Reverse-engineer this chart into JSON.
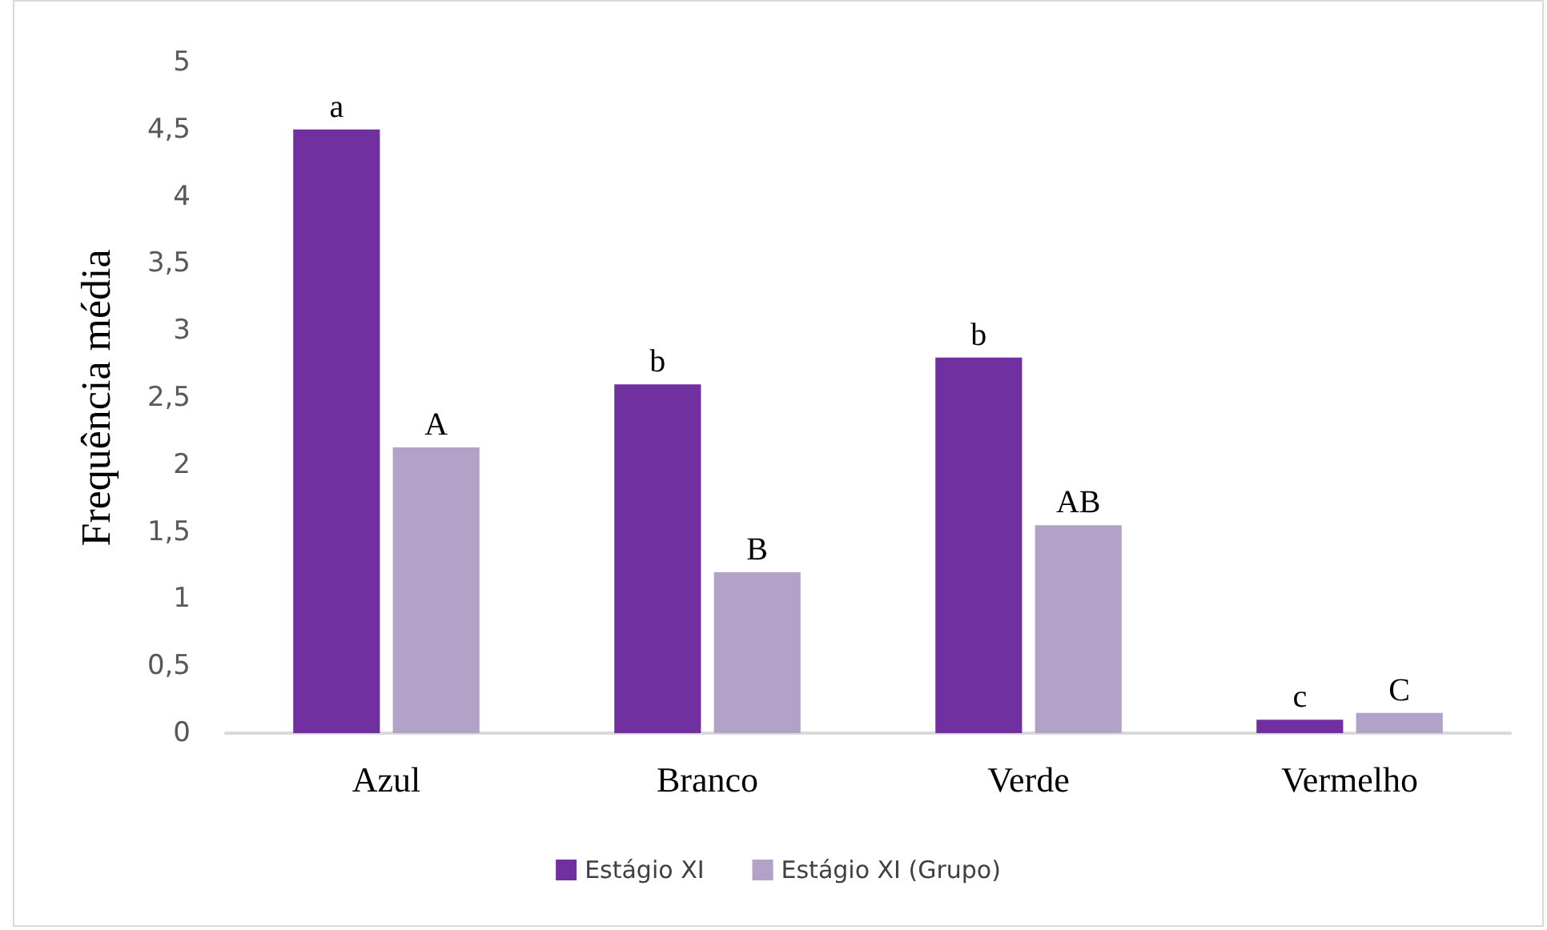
{
  "chart_data": {
    "type": "bar",
    "ylabel": "Frequência média",
    "categories": [
      "Azul",
      "Branco",
      "Verde",
      "Vermelho"
    ],
    "series": [
      {
        "name": "Estágio XI",
        "color": "#7030a0",
        "values": [
          4.5,
          2.6,
          2.8,
          0.1
        ],
        "value_labels": [
          "a",
          "b",
          "b",
          "c"
        ]
      },
      {
        "name": "Estágio XI (Grupo)",
        "color": "#b3a2c7",
        "values": [
          2.13,
          1.2,
          1.55,
          0.15
        ],
        "value_labels": [
          "A",
          "B",
          "AB",
          "C"
        ]
      }
    ],
    "ylim": [
      0,
      5
    ],
    "yticks": [
      0,
      {
        "value": 0.5,
        "label": "0,5"
      },
      1,
      {
        "value": 1.5,
        "label": "1,5"
      },
      2,
      {
        "value": 2.5,
        "label": "2,5"
      },
      3,
      {
        "value": 3.5,
        "label": "3,5"
      },
      4,
      {
        "value": 4.5,
        "label": "4,5"
      },
      5
    ],
    "grid": false,
    "legend": "bottom"
  }
}
